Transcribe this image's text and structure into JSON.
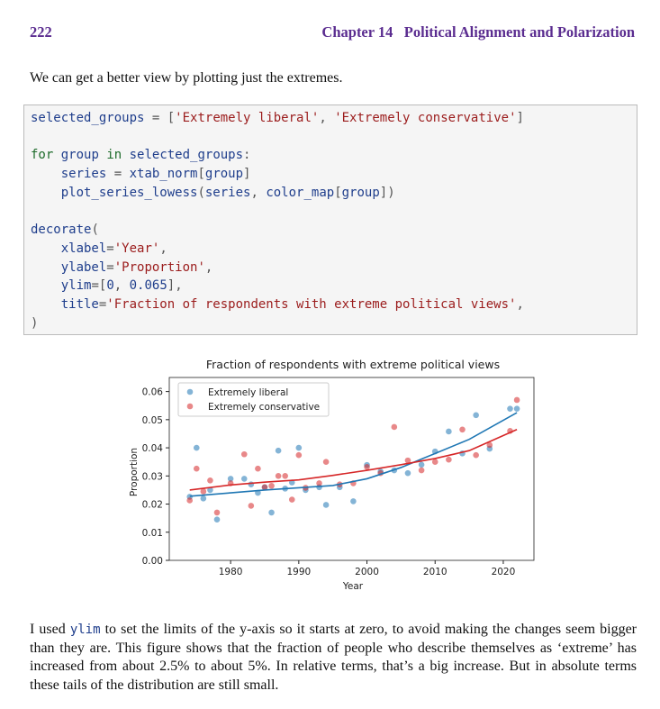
{
  "header": {
    "page_number": "222",
    "chapter": "Chapter 14",
    "chapter_title": "Political Alignment and Polarization"
  },
  "intro": "We can get a better view by plotting just the extremes.",
  "code": [
    [
      "selected_groups = ['Extremely liberal', 'Extremely conservative']"
    ],
    [
      "for group in selected_groups:",
      "    series = xtab_norm[group]",
      "    plot_series_lowess(series, color_map[group])"
    ],
    [
      "decorate(",
      "    xlabel='Year',",
      "    ylabel='Proportion',",
      "    ylim=[0, 0.065],",
      "    title='Fraction of respondents with extreme political views',",
      ")"
    ]
  ],
  "chart_data": {
    "type": "scatter",
    "title": "Fraction of respondents with extreme political views",
    "xlabel": "Year",
    "ylabel": "Proportion",
    "x": [
      1974,
      1975,
      1976,
      1977,
      1978,
      1980,
      1982,
      1983,
      1984,
      1985,
      1986,
      1987,
      1988,
      1989,
      1990,
      1991,
      1993,
      1994,
      1996,
      1998,
      2000,
      2002,
      2004,
      2006,
      2008,
      2010,
      2012,
      2014,
      2016,
      2018,
      2021,
      2022
    ],
    "series": [
      {
        "name": "Extremely liberal",
        "color": "#1f77b4",
        "values": [
          0.0226,
          0.04,
          0.022,
          0.025,
          0.0145,
          0.029,
          0.029,
          0.027,
          0.024,
          0.026,
          0.017,
          0.039,
          0.0255,
          0.0277,
          0.04,
          0.025,
          0.026,
          0.0197,
          0.026,
          0.021,
          0.0339,
          0.0316,
          0.032,
          0.031,
          0.034,
          0.0387,
          0.0458,
          0.038,
          0.0516,
          0.0397,
          0.0539,
          0.0539
        ],
        "smooth": {
          "x": [
            1974,
            1980,
            1985,
            1990,
            1995,
            2000,
            2005,
            2010,
            2015,
            2022
          ],
          "values": [
            0.0228,
            0.024,
            0.025,
            0.0258,
            0.0266,
            0.029,
            0.033,
            0.038,
            0.043,
            0.0525
          ]
        }
      },
      {
        "name": "Extremely conservative",
        "color": "#d62728",
        "values": [
          0.0213,
          0.0326,
          0.0245,
          0.0284,
          0.017,
          0.0274,
          0.0377,
          0.0194,
          0.0326,
          0.026,
          0.0265,
          0.03,
          0.03,
          0.0216,
          0.0374,
          0.0258,
          0.0274,
          0.035,
          0.027,
          0.0274,
          0.0332,
          0.031,
          0.0474,
          0.0355,
          0.032,
          0.035,
          0.0358,
          0.0465,
          0.0374,
          0.041,
          0.046,
          0.057
        ],
        "smooth": {
          "x": [
            1974,
            1980,
            1985,
            1990,
            1995,
            2000,
            2005,
            2010,
            2015,
            2022
          ],
          "values": [
            0.025,
            0.0268,
            0.0278,
            0.0286,
            0.0302,
            0.032,
            0.034,
            0.0362,
            0.039,
            0.0465
          ]
        }
      }
    ],
    "xlim": [
      1971,
      2024.5
    ],
    "ylim": [
      0,
      0.065
    ],
    "xticks": [
      1980,
      1990,
      2000,
      2010,
      2020
    ],
    "yticks": [
      {
        "value": 0,
        "label": "0.00"
      },
      {
        "value": 0.01,
        "label": "0.01"
      },
      {
        "value": 0.02,
        "label": "0.02"
      },
      {
        "value": 0.03,
        "label": "0.03"
      },
      {
        "value": 0.04,
        "label": "0.04"
      },
      {
        "value": 0.05,
        "label": "0.05"
      },
      {
        "value": 0.06,
        "label": "0.06"
      }
    ],
    "legend": "upper left"
  },
  "paragraph": {
    "before": "I used ",
    "code": "ylim",
    "after": " to set the limits of the y-axis so it starts at zero, to avoid making the changes seem bigger than they are. This figure shows that the fraction of people who describe themselves as ‘extreme’ has increased from about 2.5% to about 5%. In relative terms, that’s a big increase. But in absolute terms these tails of the distribution are still small."
  }
}
